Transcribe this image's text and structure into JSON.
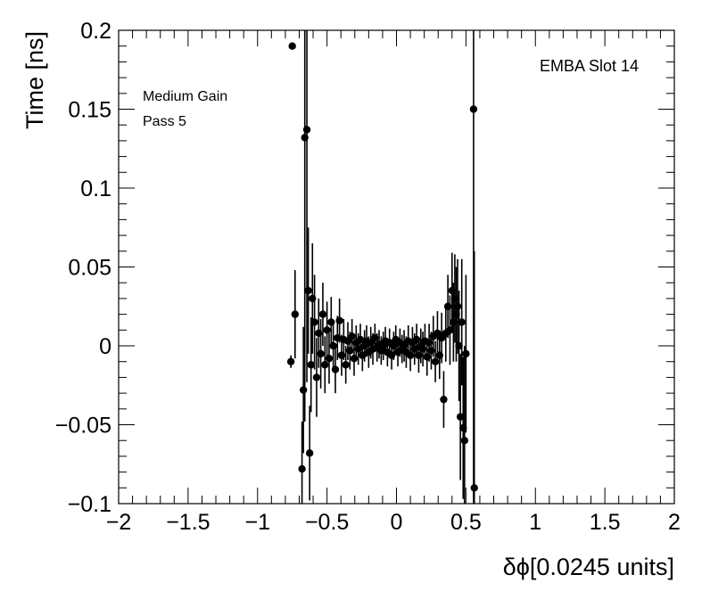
{
  "chart_data": {
    "type": "scatter",
    "xlabel": "δϕ[0.0245 units]",
    "ylabel": "Time [ns]",
    "xlim": [
      -2,
      2
    ],
    "ylim": [
      -0.1,
      0.2
    ],
    "x_ticks": [
      "−2",
      "−1.5",
      "−1",
      "−0.5",
      "0",
      "0.5",
      "1",
      "1.5",
      "2"
    ],
    "y_ticks": [
      "−0.1",
      "−0.05",
      "0",
      "0.05",
      "0.1",
      "0.15",
      "0.2"
    ],
    "grid": false,
    "legend": "none",
    "error_bars": true,
    "annotations": {
      "top_right": "EMBA Slot 14",
      "top_left_line1": "Medium Gain",
      "top_left_line2": "Pass 5"
    },
    "points": [
      {
        "x": -0.76,
        "y": -0.01,
        "err": 0.004
      },
      {
        "x": -0.75,
        "y": 0.19,
        "err": 0.002
      },
      {
        "x": -0.73,
        "y": 0.02,
        "err": 0.028
      },
      {
        "x": -0.68,
        "y": -0.078,
        "err": 0.03
      },
      {
        "x": -0.67,
        "y": -0.028,
        "err": 0.04
      },
      {
        "x": -0.66,
        "y": 0.132,
        "err": 0.18
      },
      {
        "x": -0.645,
        "y": 0.137,
        "err": 0.16
      },
      {
        "x": -0.635,
        "y": 0.035,
        "err": 0.04
      },
      {
        "x": -0.625,
        "y": -0.068,
        "err": 0.03
      },
      {
        "x": -0.615,
        "y": -0.012,
        "err": 0.03
      },
      {
        "x": -0.605,
        "y": 0.03,
        "err": 0.035
      },
      {
        "x": -0.59,
        "y": 0.015,
        "err": 0.03
      },
      {
        "x": -0.575,
        "y": -0.02,
        "err": 0.025
      },
      {
        "x": -0.56,
        "y": 0.008,
        "err": 0.022
      },
      {
        "x": -0.545,
        "y": -0.005,
        "err": 0.022
      },
      {
        "x": -0.53,
        "y": 0.02,
        "err": 0.02
      },
      {
        "x": -0.515,
        "y": -0.012,
        "err": 0.018
      },
      {
        "x": -0.5,
        "y": 0.01,
        "err": 0.018
      },
      {
        "x": -0.485,
        "y": -0.008,
        "err": 0.016
      },
      {
        "x": -0.47,
        "y": 0.015,
        "err": 0.016
      },
      {
        "x": -0.455,
        "y": 0.0,
        "err": 0.015
      },
      {
        "x": -0.44,
        "y": -0.015,
        "err": 0.015
      },
      {
        "x": -0.425,
        "y": 0.005,
        "err": 0.014
      },
      {
        "x": -0.41,
        "y": 0.016,
        "err": 0.014
      },
      {
        "x": -0.395,
        "y": -0.006,
        "err": 0.013
      },
      {
        "x": -0.38,
        "y": 0.004,
        "err": 0.013
      },
      {
        "x": -0.365,
        "y": -0.012,
        "err": 0.012
      },
      {
        "x": -0.35,
        "y": 0.003,
        "err": 0.012
      },
      {
        "x": -0.335,
        "y": -0.003,
        "err": 0.012
      },
      {
        "x": -0.32,
        "y": 0.006,
        "err": 0.011
      },
      {
        "x": -0.305,
        "y": -0.008,
        "err": 0.011
      },
      {
        "x": -0.29,
        "y": 0.002,
        "err": 0.011
      },
      {
        "x": -0.275,
        "y": -0.002,
        "err": 0.01
      },
      {
        "x": -0.26,
        "y": 0.004,
        "err": 0.01
      },
      {
        "x": -0.245,
        "y": -0.006,
        "err": 0.01
      },
      {
        "x": -0.23,
        "y": 0.0,
        "err": 0.01
      },
      {
        "x": -0.215,
        "y": 0.003,
        "err": 0.01
      },
      {
        "x": -0.2,
        "y": -0.004,
        "err": 0.01
      },
      {
        "x": -0.185,
        "y": 0.002,
        "err": 0.01
      },
      {
        "x": -0.17,
        "y": -0.002,
        "err": 0.01
      },
      {
        "x": -0.155,
        "y": 0.005,
        "err": 0.009
      },
      {
        "x": -0.14,
        "y": -0.001,
        "err": 0.009
      },
      {
        "x": -0.125,
        "y": 0.001,
        "err": 0.009
      },
      {
        "x": -0.11,
        "y": -0.003,
        "err": 0.009
      },
      {
        "x": -0.095,
        "y": 0.0,
        "err": 0.009
      },
      {
        "x": -0.08,
        "y": 0.003,
        "err": 0.009
      },
      {
        "x": -0.065,
        "y": -0.004,
        "err": 0.009
      },
      {
        "x": -0.05,
        "y": 0.002,
        "err": 0.009
      },
      {
        "x": -0.035,
        "y": -0.006,
        "err": 0.009
      },
      {
        "x": -0.02,
        "y": 0.0,
        "err": 0.009
      },
      {
        "x": -0.005,
        "y": 0.004,
        "err": 0.009
      },
      {
        "x": 0.01,
        "y": -0.004,
        "err": 0.009
      },
      {
        "x": 0.025,
        "y": 0.002,
        "err": 0.009
      },
      {
        "x": 0.04,
        "y": -0.002,
        "err": 0.009
      },
      {
        "x": 0.055,
        "y": 0.0,
        "err": 0.01
      },
      {
        "x": 0.07,
        "y": -0.004,
        "err": 0.01
      },
      {
        "x": 0.085,
        "y": 0.003,
        "err": 0.01
      },
      {
        "x": 0.1,
        "y": -0.006,
        "err": 0.01
      },
      {
        "x": 0.115,
        "y": 0.002,
        "err": 0.01
      },
      {
        "x": 0.13,
        "y": -0.002,
        "err": 0.01
      },
      {
        "x": 0.145,
        "y": 0.004,
        "err": 0.01
      },
      {
        "x": 0.16,
        "y": -0.006,
        "err": 0.011
      },
      {
        "x": 0.175,
        "y": 0.0,
        "err": 0.011
      },
      {
        "x": 0.19,
        "y": -0.002,
        "err": 0.011
      },
      {
        "x": 0.205,
        "y": 0.003,
        "err": 0.011
      },
      {
        "x": 0.22,
        "y": -0.007,
        "err": 0.012
      },
      {
        "x": 0.235,
        "y": 0.002,
        "err": 0.012
      },
      {
        "x": 0.25,
        "y": -0.003,
        "err": 0.012
      },
      {
        "x": 0.265,
        "y": 0.006,
        "err": 0.013
      },
      {
        "x": 0.28,
        "y": -0.01,
        "err": 0.013
      },
      {
        "x": 0.295,
        "y": 0.008,
        "err": 0.014
      },
      {
        "x": 0.31,
        "y": -0.006,
        "err": 0.015
      },
      {
        "x": 0.325,
        "y": 0.005,
        "err": 0.016
      },
      {
        "x": 0.34,
        "y": -0.034,
        "err": 0.018
      },
      {
        "x": 0.355,
        "y": 0.008,
        "err": 0.018
      },
      {
        "x": 0.37,
        "y": 0.025,
        "err": 0.02
      },
      {
        "x": 0.385,
        "y": 0.01,
        "err": 0.022
      },
      {
        "x": 0.4,
        "y": 0.035,
        "err": 0.024
      },
      {
        "x": 0.41,
        "y": 0.015,
        "err": 0.025
      },
      {
        "x": 0.42,
        "y": 0.03,
        "err": 0.028
      },
      {
        "x": 0.43,
        "y": 0.02,
        "err": 0.03
      },
      {
        "x": 0.44,
        "y": 0.025,
        "err": 0.03
      },
      {
        "x": 0.45,
        "y": 0.0,
        "err": 0.035
      },
      {
        "x": 0.46,
        "y": -0.045,
        "err": 0.04
      },
      {
        "x": 0.47,
        "y": 0.015,
        "err": 0.04
      },
      {
        "x": 0.48,
        "y": -0.052,
        "err": 0.045
      },
      {
        "x": 0.49,
        "y": -0.06,
        "err": 0.06
      },
      {
        "x": 0.5,
        "y": -0.005,
        "err": 0.05
      },
      {
        "x": 0.555,
        "y": 0.15,
        "err": 0.26
      },
      {
        "x": 0.56,
        "y": -0.09,
        "err": 0.15
      }
    ]
  }
}
